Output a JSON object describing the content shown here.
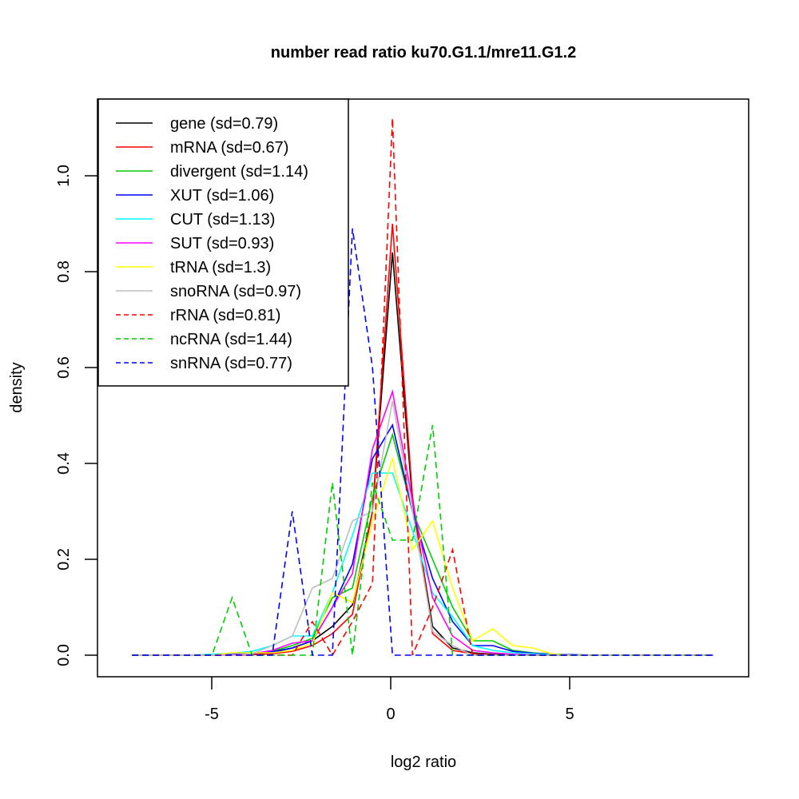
{
  "chart_data": {
    "type": "line",
    "title": "number read ratio ku70.G1.1/mre11.G1.2",
    "xlabel": "log2 ratio",
    "ylabel": "density",
    "xlim": [
      -8.3,
      10.0
    ],
    "ylim": [
      -0.045,
      1.2
    ],
    "x_ticks": [
      -5,
      0,
      5
    ],
    "x_tick_labels": [
      "-5",
      "0",
      "5"
    ],
    "y_ticks": [
      0.0,
      0.2,
      0.4,
      0.6,
      0.8,
      1.0
    ],
    "y_tick_labels": [
      "0.0",
      "0.2",
      "0.4",
      "0.6",
      "0.8",
      "1.0"
    ],
    "grid": false,
    "legend_position": "top-left",
    "x": [
      -7.23,
      -6.67,
      -6.11,
      -5.55,
      -4.99,
      -4.43,
      -3.87,
      -3.31,
      -2.75,
      -2.19,
      -1.63,
      -1.07,
      -0.51,
      0.05,
      0.61,
      1.17,
      1.73,
      2.29,
      2.85,
      3.41,
      3.97,
      4.53,
      5.09,
      5.65,
      6.21,
      6.77,
      7.33,
      7.89,
      8.45,
      9.01
    ],
    "series": [
      {
        "name": "gene",
        "label": "gene (sd=0.79)",
        "color": "#000000",
        "dash": "solid",
        "values": [
          0,
          0,
          0,
          0,
          0,
          0.001,
          0.003,
          0.006,
          0.015,
          0.03,
          0.06,
          0.105,
          0.3,
          0.84,
          0.32,
          0.06,
          0.015,
          0.005,
          0.002,
          0.001,
          0,
          0,
          0,
          0,
          0,
          0,
          0,
          0,
          0,
          0
        ]
      },
      {
        "name": "mRNA",
        "label": "mRNA (sd=0.67)",
        "color": "#ff0000",
        "dash": "solid",
        "values": [
          0,
          0,
          0,
          0,
          0,
          0,
          0.001,
          0.003,
          0.008,
          0.02,
          0.045,
          0.085,
          0.3,
          0.9,
          0.33,
          0.045,
          0.01,
          0.003,
          0.001,
          0,
          0,
          0,
          0,
          0,
          0,
          0,
          0,
          0,
          0,
          0
        ]
      },
      {
        "name": "divergent",
        "label": "divergent (sd=1.14)",
        "color": "#00cd00",
        "dash": "solid",
        "values": [
          0,
          0,
          0,
          0,
          0.001,
          0.002,
          0.004,
          0.008,
          0.02,
          0.035,
          0.12,
          0.14,
          0.33,
          0.46,
          0.3,
          0.2,
          0.1,
          0.03,
          0.03,
          0.01,
          0.005,
          0.002,
          0.001,
          0,
          0,
          0,
          0,
          0,
          0,
          0
        ]
      },
      {
        "name": "XUT",
        "label": "XUT (sd=1.06)",
        "color": "#0000ff",
        "dash": "solid",
        "values": [
          0,
          0,
          0,
          0,
          0.001,
          0.002,
          0.004,
          0.007,
          0.015,
          0.03,
          0.1,
          0.19,
          0.41,
          0.48,
          0.3,
          0.16,
          0.07,
          0.02,
          0.02,
          0.008,
          0.004,
          0.002,
          0.001,
          0,
          0,
          0,
          0,
          0,
          0,
          0
        ]
      },
      {
        "name": "CUT",
        "label": "CUT (sd=1.13)",
        "color": "#00ffff",
        "dash": "solid",
        "values": [
          0,
          0,
          0,
          0,
          0.002,
          0.004,
          0.008,
          0.02,
          0.04,
          0.04,
          0.13,
          0.25,
          0.38,
          0.38,
          0.26,
          0.13,
          0.08,
          0.02,
          0.01,
          0.005,
          0.003,
          0.001,
          0,
          0,
          0,
          0,
          0,
          0,
          0,
          0
        ]
      },
      {
        "name": "SUT",
        "label": "SUT (sd=0.93)",
        "color": "#ff00ff",
        "dash": "solid",
        "values": [
          0,
          0,
          0,
          0,
          0,
          0.001,
          0.003,
          0.01,
          0.025,
          0.03,
          0.1,
          0.17,
          0.43,
          0.55,
          0.32,
          0.12,
          0.04,
          0.01,
          0.005,
          0.002,
          0.001,
          0,
          0,
          0,
          0,
          0,
          0,
          0,
          0,
          0
        ]
      },
      {
        "name": "tRNA",
        "label": "tRNA (sd=1.3)",
        "color": "#ffff00",
        "dash": "solid",
        "values": [
          0,
          0,
          0,
          0,
          0,
          0.005,
          0.005,
          0.005,
          0.01,
          0.025,
          0.13,
          0.11,
          0.28,
          0.41,
          0.22,
          0.28,
          0.14,
          0.03,
          0.055,
          0.02,
          0.015,
          0.002,
          0,
          0,
          0,
          0,
          0,
          0,
          0,
          0
        ]
      },
      {
        "name": "snoRNA",
        "label": "snoRNA (sd=0.97)",
        "color": "#bebebe",
        "dash": "solid",
        "values": [
          0,
          0,
          0,
          0,
          0,
          0,
          0.003,
          0.02,
          0.04,
          0.14,
          0.16,
          0.28,
          0.3,
          0.53,
          0.3,
          0.05,
          0.02,
          0,
          0,
          0,
          0,
          0,
          0,
          0,
          0,
          0,
          0,
          0,
          0,
          0
        ]
      },
      {
        "name": "rRNA",
        "label": "rRNA (sd=0.81)",
        "color": "#ff0000",
        "dash": "dashed",
        "values": [
          0,
          0,
          0,
          0,
          0,
          0,
          0,
          0,
          0,
          0.07,
          0,
          0.07,
          0.15,
          1.12,
          0,
          0.1,
          0.22,
          0,
          0,
          0,
          0,
          0,
          0,
          0,
          0,
          0,
          0,
          0,
          0,
          0
        ]
      },
      {
        "name": "ncRNA",
        "label": "ncRNA (sd=1.44)",
        "color": "#00cd00",
        "dash": "dashed",
        "values": [
          0,
          0,
          0,
          0,
          0,
          0.12,
          0,
          0,
          0,
          0,
          0.36,
          0,
          0.36,
          0.24,
          0.24,
          0.48,
          0,
          0,
          0,
          0,
          0,
          0,
          0,
          0,
          0,
          0,
          0,
          0,
          0,
          0
        ]
      },
      {
        "name": "snRNA",
        "label": "snRNA (sd=0.77)",
        "color": "#0000ff",
        "dash": "dashed",
        "values": [
          0,
          0,
          0,
          0,
          0,
          0,
          0,
          0,
          0.3,
          0,
          0,
          0.89,
          0.6,
          0,
          0,
          0,
          0,
          0,
          0,
          0,
          0,
          0,
          0,
          0,
          0,
          0,
          0,
          0,
          0,
          0
        ]
      }
    ]
  }
}
